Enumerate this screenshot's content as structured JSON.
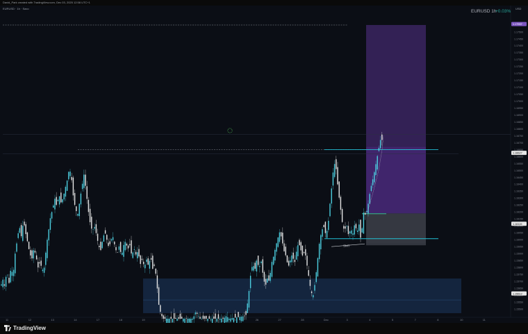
{
  "header": {
    "caption": "David_Park created with TradingView.com, Dec 03, 2025 12:58 UTC+1"
  },
  "symbol_bar": {
    "label": "EURUSD · 1h · Saxo"
  },
  "legend": {
    "symbol": "EURUSD 1h",
    "change": "+0.03%",
    "change_color": "#26a69a"
  },
  "price_scale": {
    "currency": "USD",
    "price_labels": [
      {
        "price": 1.17557,
        "text": "1.17557",
        "color": "#7e57c2"
      },
      {
        "price": 1.16627,
        "text": "1.16627",
        "color": "#e6e6e6"
      },
      {
        "price": 1.16115,
        "text": "1.16115",
        "color": "#e6e6e6"
      },
      {
        "price": 1.15612,
        "text": "1.15612",
        "color": "#e6e6e6"
      }
    ]
  },
  "annotations": {
    "smt_label": "SMT"
  },
  "footer": {
    "brand": "TradingView"
  },
  "chart_data": {
    "type": "candlestick",
    "symbol": "EURUSD",
    "timeframe": "1h",
    "y_ticks": [
      1.1755,
      1.175,
      1.1745,
      1.174,
      1.1735,
      1.173,
      1.1725,
      1.172,
      1.1715,
      1.171,
      1.1705,
      1.17,
      1.1695,
      1.169,
      1.1685,
      1.168,
      1.1675,
      1.167,
      1.1665,
      1.166,
      1.1655,
      1.165,
      1.1645,
      1.164,
      1.1635,
      1.163,
      1.1625,
      1.162,
      1.1615,
      1.161,
      1.1605,
      1.16,
      1.1595,
      1.159,
      1.1585,
      1.158,
      1.1575,
      1.157,
      1.1565,
      1.156,
      1.1555,
      1.155
    ],
    "y_range": [
      1.1543,
      1.176
    ],
    "x_ticks": [
      "11",
      "12",
      "13",
      "14",
      "17",
      "18",
      "19",
      "20",
      "21",
      "23",
      "25",
      "26",
      "27",
      "28",
      "Dec",
      "3",
      "4",
      "5",
      "7",
      "8",
      "10",
      "11"
    ],
    "price_path": [
      [
        0,
        1.1571
      ],
      [
        3,
        1.1565
      ],
      [
        6,
        1.1572
      ],
      [
        9,
        1.1566
      ],
      [
        12,
        1.1578
      ],
      [
        15,
        1.1568
      ],
      [
        18,
        1.158
      ],
      [
        21,
        1.1574
      ],
      [
        24,
        1.159
      ],
      [
        27,
        1.16
      ],
      [
        30,
        1.161
      ],
      [
        33,
        1.1602
      ],
      [
        36,
        1.1614
      ],
      [
        39,
        1.1605
      ],
      [
        42,
        1.1598
      ],
      [
        45,
        1.159
      ],
      [
        48,
        1.1586
      ],
      [
        51,
        1.1594
      ],
      [
        54,
        1.1588
      ],
      [
        57,
        1.158
      ],
      [
        60,
        1.1584
      ],
      [
        63,
        1.1578
      ],
      [
        66,
        1.158
      ],
      [
        69,
        1.1596
      ],
      [
        72,
        1.1606
      ],
      [
        75,
        1.1617
      ],
      [
        78,
        1.1622
      ],
      [
        81,
        1.163
      ],
      [
        84,
        1.1624
      ],
      [
        87,
        1.1633
      ],
      [
        90,
        1.1627
      ],
      [
        93,
        1.163
      ],
      [
        96,
        1.1637
      ],
      [
        99,
        1.1643
      ],
      [
        102,
        1.1652
      ],
      [
        105,
        1.1645
      ],
      [
        108,
        1.163
      ],
      [
        111,
        1.1622
      ],
      [
        114,
        1.1618
      ],
      [
        117,
        1.1628
      ],
      [
        120,
        1.1638
      ],
      [
        123,
        1.1647
      ],
      [
        126,
        1.1636
      ],
      [
        129,
        1.1622
      ],
      [
        132,
        1.1612
      ],
      [
        135,
        1.1606
      ],
      [
        138,
        1.161
      ],
      [
        141,
        1.1604
      ],
      [
        144,
        1.1596
      ],
      [
        147,
        1.1592
      ],
      [
        150,
        1.16
      ],
      [
        153,
        1.1606
      ],
      [
        156,
        1.16
      ],
      [
        159,
        1.1594
      ],
      [
        162,
        1.16
      ],
      [
        165,
        1.1602
      ],
      [
        168,
        1.1594
      ],
      [
        171,
        1.159
      ],
      [
        174,
        1.1596
      ],
      [
        177,
        1.1588
      ],
      [
        180,
        1.1596
      ],
      [
        183,
        1.1599
      ],
      [
        186,
        1.1593
      ],
      [
        189,
        1.1596
      ],
      [
        192,
        1.1588
      ],
      [
        195,
        1.1594
      ],
      [
        198,
        1.1589
      ],
      [
        201,
        1.1592
      ],
      [
        204,
        1.1582
      ],
      [
        207,
        1.1586
      ],
      [
        210,
        1.158
      ],
      [
        213,
        1.1586
      ],
      [
        216,
        1.1581
      ],
      [
        219,
        1.1588
      ],
      [
        222,
        1.1579
      ],
      [
        225,
        1.1582
      ],
      [
        228,
        1.1568
      ],
      [
        231,
        1.1552
      ],
      [
        234,
        1.1546
      ],
      [
        237,
        1.1543
      ],
      [
        240,
        1.1543
      ],
      [
        280,
        1.1543
      ],
      [
        284,
        1.1548
      ],
      [
        290,
        1.1543
      ],
      [
        324,
        1.1543
      ],
      [
        328,
        1.1545
      ],
      [
        332,
        1.1543
      ],
      [
        356,
        1.1545
      ],
      [
        360,
        1.156
      ],
      [
        363,
        1.1575
      ],
      [
        366,
        1.1583
      ],
      [
        369,
        1.1578
      ],
      [
        372,
        1.1586
      ],
      [
        375,
        1.1579
      ],
      [
        378,
        1.1585
      ],
      [
        381,
        1.1574
      ],
      [
        384,
        1.1566
      ],
      [
        387,
        1.1572
      ],
      [
        390,
        1.157
      ],
      [
        393,
        1.1583
      ],
      [
        396,
        1.1588
      ],
      [
        399,
        1.1595
      ],
      [
        402,
        1.1601
      ],
      [
        405,
        1.1606
      ],
      [
        408,
        1.16
      ],
      [
        411,
        1.1592
      ],
      [
        414,
        1.1588
      ],
      [
        417,
        1.158
      ],
      [
        420,
        1.1585
      ],
      [
        423,
        1.159
      ],
      [
        426,
        1.1582
      ],
      [
        429,
        1.1592
      ],
      [
        432,
        1.1598
      ],
      [
        435,
        1.1593
      ],
      [
        438,
        1.1588
      ],
      [
        441,
        1.1592
      ],
      [
        444,
        1.1582
      ],
      [
        447,
        1.1572
      ],
      [
        450,
        1.1562
      ],
      [
        453,
        1.156
      ],
      [
        456,
        1.157
      ],
      [
        459,
        1.1584
      ],
      [
        462,
        1.1598
      ],
      [
        465,
        1.1606
      ],
      [
        468,
        1.161
      ],
      [
        471,
        1.1604
      ],
      [
        474,
        1.1608
      ],
      [
        477,
        1.1625
      ],
      [
        480,
        1.164
      ],
      [
        483,
        1.1656
      ],
      [
        486,
        1.1651
      ],
      [
        489,
        1.1636
      ],
      [
        492,
        1.1624
      ],
      [
        495,
        1.1612
      ],
      [
        498,
        1.1606
      ],
      [
        501,
        1.1611
      ],
      [
        504,
        1.1603
      ],
      [
        507,
        1.1608
      ],
      [
        510,
        1.1604
      ],
      [
        513,
        1.1612
      ],
      [
        516,
        1.1605
      ],
      [
        519,
        1.1611
      ],
      [
        522,
        1.1598
      ],
      [
        525,
        1.162
      ],
      [
        528,
        1.1618
      ],
      [
        531,
        1.1622
      ],
      [
        534,
        1.1632
      ],
      [
        537,
        1.164
      ],
      [
        540,
        1.1646
      ],
      [
        543,
        1.1654
      ],
      [
        546,
        1.1662
      ],
      [
        549,
        1.167
      ],
      [
        551,
        1.1675
      ]
    ],
    "drawings": {
      "buy_high_line": 1.1665,
      "entry_line": 1.1619,
      "stop_line": 1.1601,
      "smt_from": 1.1595,
      "smt_to": 1.1597
    }
  }
}
